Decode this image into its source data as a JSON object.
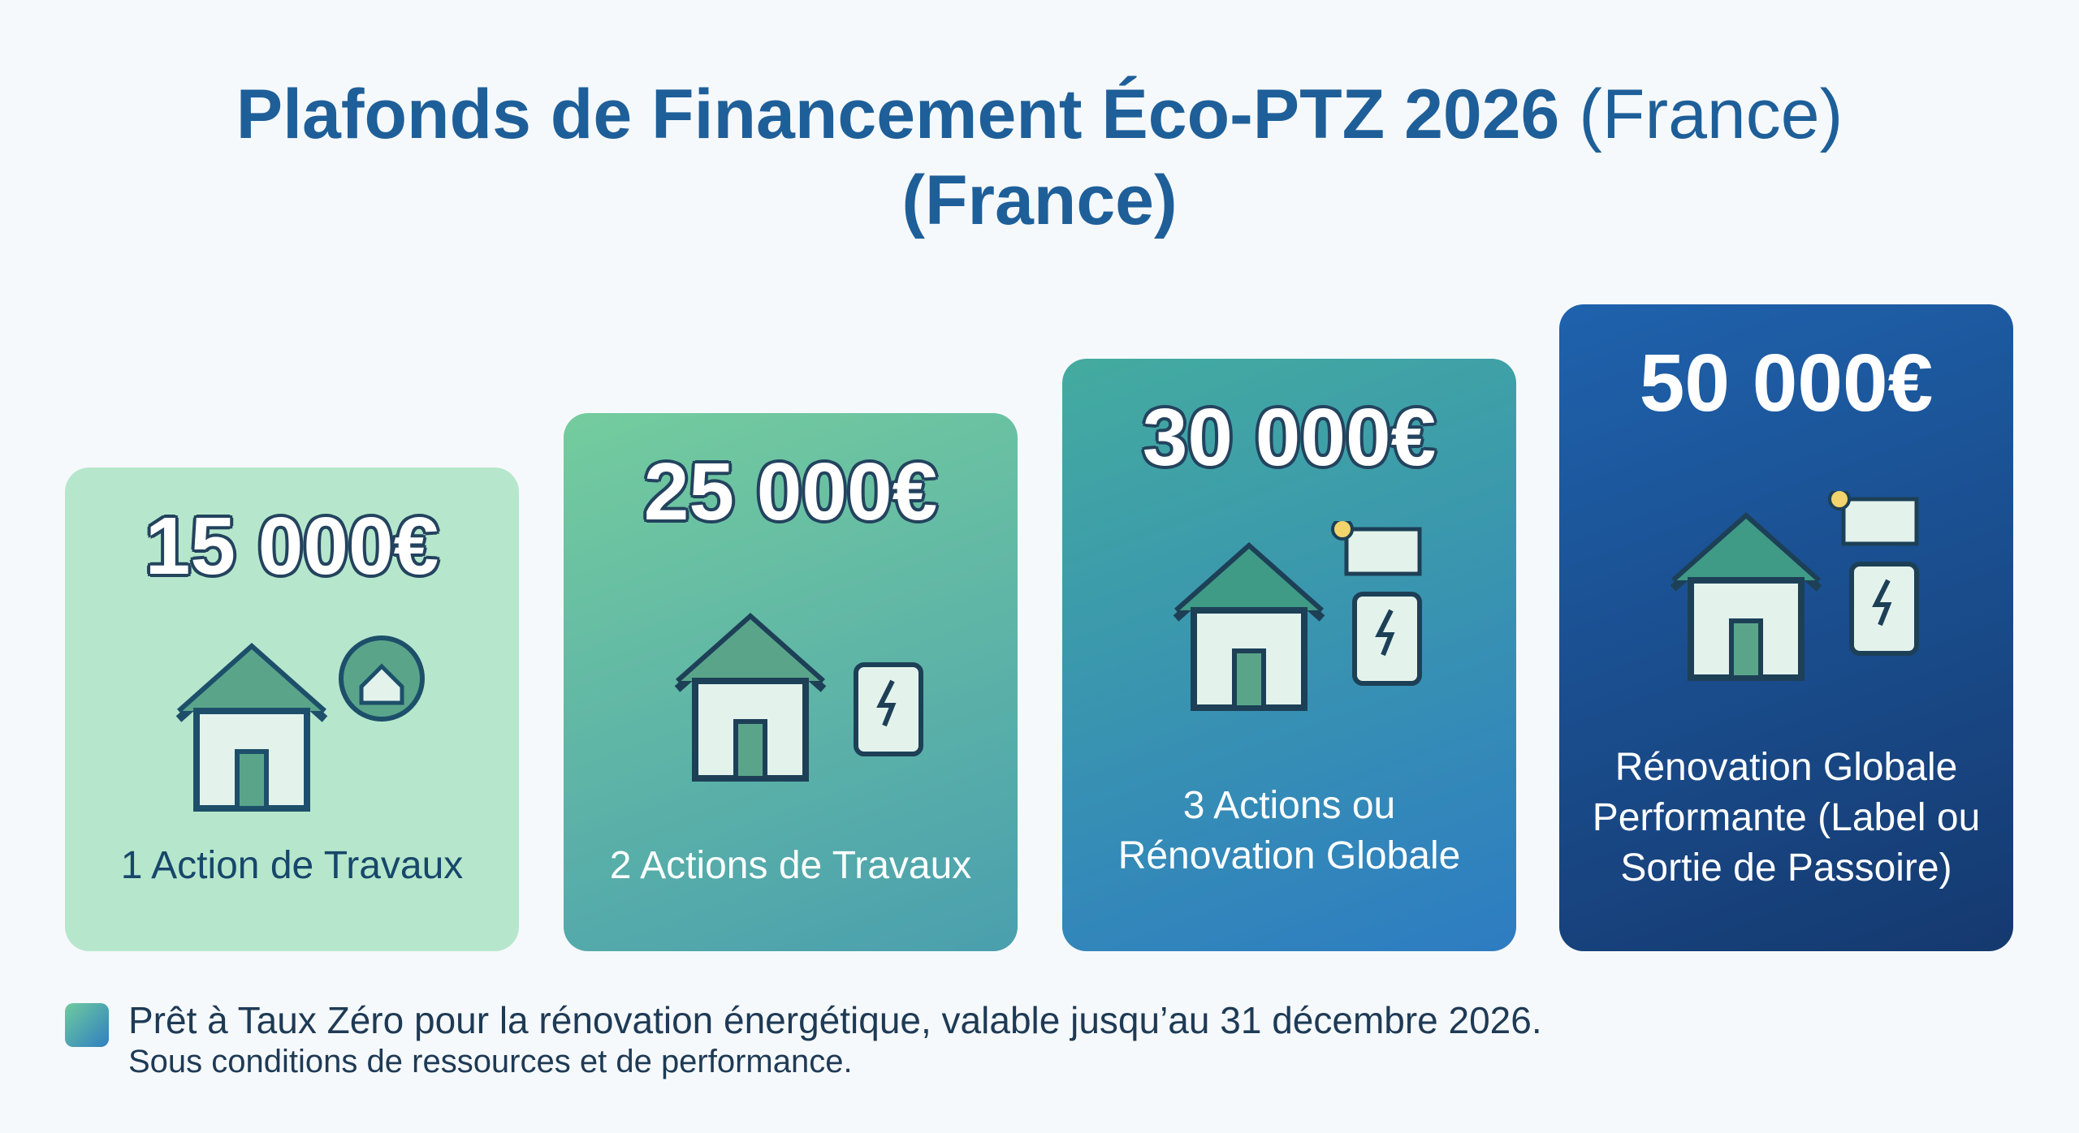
{
  "header": {
    "title": "Plafonds de Financement Éco-PTZ 2026",
    "title_suffix": "(France)",
    "title_line2": "(France)"
  },
  "cards": [
    {
      "amount": "15 000€",
      "label": "1 Action de Travaux"
    },
    {
      "amount": "25 000€",
      "label": "2 Actions de Travaux"
    },
    {
      "amount": "30 000€",
      "label": "3 Actions ou Rénovation Globale"
    },
    {
      "amount": "50 000€",
      "label": "Rénovation Globale Performante (Label ou Sortie de Passoire)"
    }
  ],
  "footer": {
    "line1": "Prêt à Taux Zéro pour la rénovation énergétique, valable jusqu’au 31 décembre 2026.",
    "line2": "Sous conditions de ressources et de performance."
  }
}
